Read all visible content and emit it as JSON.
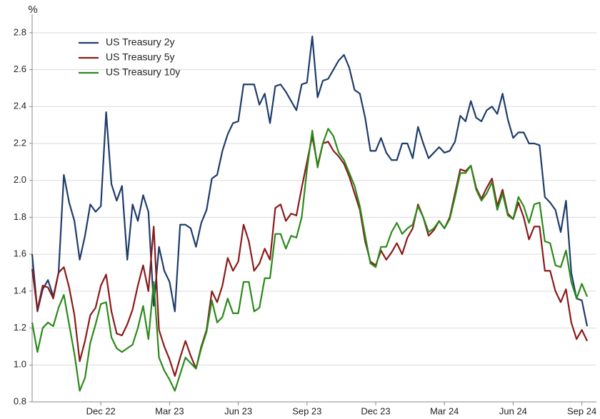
{
  "chart_data": {
    "type": "line",
    "y_label": "%",
    "categories": [
      null,
      null,
      null,
      null,
      null,
      null,
      null,
      null,
      null,
      null,
      null,
      null,
      null,
      "Dec 22",
      null,
      null,
      null,
      null,
      null,
      null,
      null,
      null,
      null,
      null,
      null,
      null,
      "Mar 23",
      null,
      null,
      null,
      null,
      null,
      null,
      null,
      null,
      null,
      null,
      null,
      null,
      "Jun 23",
      null,
      null,
      null,
      null,
      null,
      null,
      null,
      null,
      null,
      null,
      null,
      null,
      "Sep 23",
      null,
      null,
      null,
      null,
      null,
      null,
      null,
      null,
      null,
      null,
      null,
      null,
      "Dec 23",
      null,
      null,
      null,
      null,
      null,
      null,
      null,
      null,
      null,
      null,
      null,
      null,
      "Mar 24",
      null,
      null,
      null,
      null,
      null,
      null,
      null,
      null,
      null,
      null,
      null,
      null,
      "Jun 24",
      null,
      null,
      null,
      null,
      null,
      null,
      null,
      null,
      null,
      null,
      null,
      null,
      "Sep 24",
      null
    ],
    "series": [
      {
        "name": "US Treasury 2y",
        "color": "#1f3d6b",
        "values": [
          1.6,
          1.29,
          1.41,
          1.46,
          1.37,
          1.5,
          2.03,
          1.88,
          1.78,
          1.57,
          1.7,
          1.87,
          1.83,
          1.86,
          2.37,
          1.98,
          1.89,
          1.97,
          1.57,
          1.87,
          1.78,
          1.92,
          1.83,
          1.32,
          1.64,
          1.51,
          1.45,
          1.29,
          1.76,
          1.76,
          1.74,
          1.64,
          1.77,
          1.84,
          2.01,
          2.03,
          2.16,
          2.25,
          2.31,
          2.32,
          2.52,
          2.52,
          2.52,
          2.41,
          2.47,
          2.31,
          2.51,
          2.52,
          2.48,
          2.43,
          2.38,
          2.52,
          2.53,
          2.78,
          2.45,
          2.54,
          2.55,
          2.6,
          2.65,
          2.68,
          2.61,
          2.49,
          2.47,
          2.34,
          2.16,
          2.16,
          2.23,
          2.15,
          2.11,
          2.11,
          2.2,
          2.2,
          2.12,
          2.29,
          2.2,
          2.12,
          2.15,
          2.18,
          2.15,
          2.16,
          2.21,
          2.35,
          2.32,
          2.43,
          2.34,
          2.32,
          2.38,
          2.4,
          2.36,
          2.47,
          2.33,
          2.23,
          2.26,
          2.26,
          2.2,
          2.2,
          2.19,
          1.91,
          1.88,
          1.84,
          1.72,
          1.89,
          1.5,
          1.36,
          1.35,
          1.21
        ]
      },
      {
        "name": "US Treasury 5y",
        "color": "#8b1a1a",
        "values": [
          1.52,
          1.3,
          1.43,
          1.42,
          1.36,
          1.5,
          1.53,
          1.42,
          1.27,
          1.02,
          1.13,
          1.27,
          1.31,
          1.43,
          1.49,
          1.29,
          1.17,
          1.16,
          1.22,
          1.3,
          1.43,
          1.54,
          1.4,
          1.75,
          1.19,
          1.1,
          1.03,
          0.94,
          1.04,
          1.13,
          1.05,
          0.98,
          1.1,
          1.19,
          1.4,
          1.34,
          1.43,
          1.58,
          1.51,
          1.56,
          1.76,
          1.67,
          1.51,
          1.55,
          1.63,
          1.57,
          1.85,
          1.87,
          1.78,
          1.82,
          1.81,
          1.96,
          2.1,
          2.24,
          2.08,
          2.2,
          2.21,
          2.16,
          2.13,
          2.09,
          2.02,
          1.93,
          1.84,
          1.67,
          1.56,
          1.54,
          1.62,
          1.57,
          1.61,
          1.66,
          1.6,
          1.69,
          1.74,
          1.87,
          1.8,
          1.7,
          1.73,
          1.78,
          1.74,
          1.8,
          1.93,
          2.06,
          2.05,
          2.08,
          1.96,
          1.9,
          1.96,
          2.01,
          1.86,
          1.95,
          1.82,
          1.79,
          1.88,
          1.8,
          1.68,
          1.75,
          1.75,
          1.51,
          1.51,
          1.4,
          1.34,
          1.41,
          1.23,
          1.14,
          1.19,
          1.13
        ]
      },
      {
        "name": "US Treasury 10y",
        "color": "#2a8a1a",
        "values": [
          1.23,
          1.07,
          1.2,
          1.23,
          1.21,
          1.31,
          1.38,
          1.22,
          1.06,
          0.86,
          0.93,
          1.12,
          1.22,
          1.33,
          1.34,
          1.15,
          1.09,
          1.07,
          1.09,
          1.11,
          1.2,
          1.32,
          1.14,
          1.45,
          1.04,
          0.97,
          0.92,
          0.86,
          0.95,
          1.04,
          1.01,
          0.98,
          1.09,
          1.18,
          1.35,
          1.23,
          1.26,
          1.36,
          1.28,
          1.28,
          1.45,
          1.45,
          1.29,
          1.31,
          1.47,
          1.47,
          1.71,
          1.71,
          1.63,
          1.7,
          1.69,
          1.8,
          2.06,
          2.27,
          2.07,
          2.2,
          2.28,
          2.24,
          2.15,
          2.11,
          2.04,
          1.97,
          1.86,
          1.7,
          1.55,
          1.53,
          1.64,
          1.64,
          1.72,
          1.77,
          1.71,
          1.74,
          1.76,
          1.86,
          1.8,
          1.72,
          1.74,
          1.78,
          1.74,
          1.79,
          1.91,
          2.04,
          2.04,
          2.08,
          1.95,
          1.89,
          1.93,
          1.99,
          1.84,
          1.93,
          1.81,
          1.79,
          1.91,
          1.86,
          1.77,
          1.87,
          1.88,
          1.67,
          1.66,
          1.54,
          1.53,
          1.62,
          1.45,
          1.36,
          1.44,
          1.37
        ]
      }
    ],
    "ylim": [
      0.8,
      2.9
    ],
    "yticks": [
      0.8,
      {
        "value": 1,
        "label": "1.0"
      },
      1.2,
      1.4,
      1.6,
      1.8,
      {
        "value": 2,
        "label": "2.0"
      },
      2.2,
      2.4,
      2.6,
      2.8
    ],
    "grid": true,
    "legend": "upper left"
  }
}
